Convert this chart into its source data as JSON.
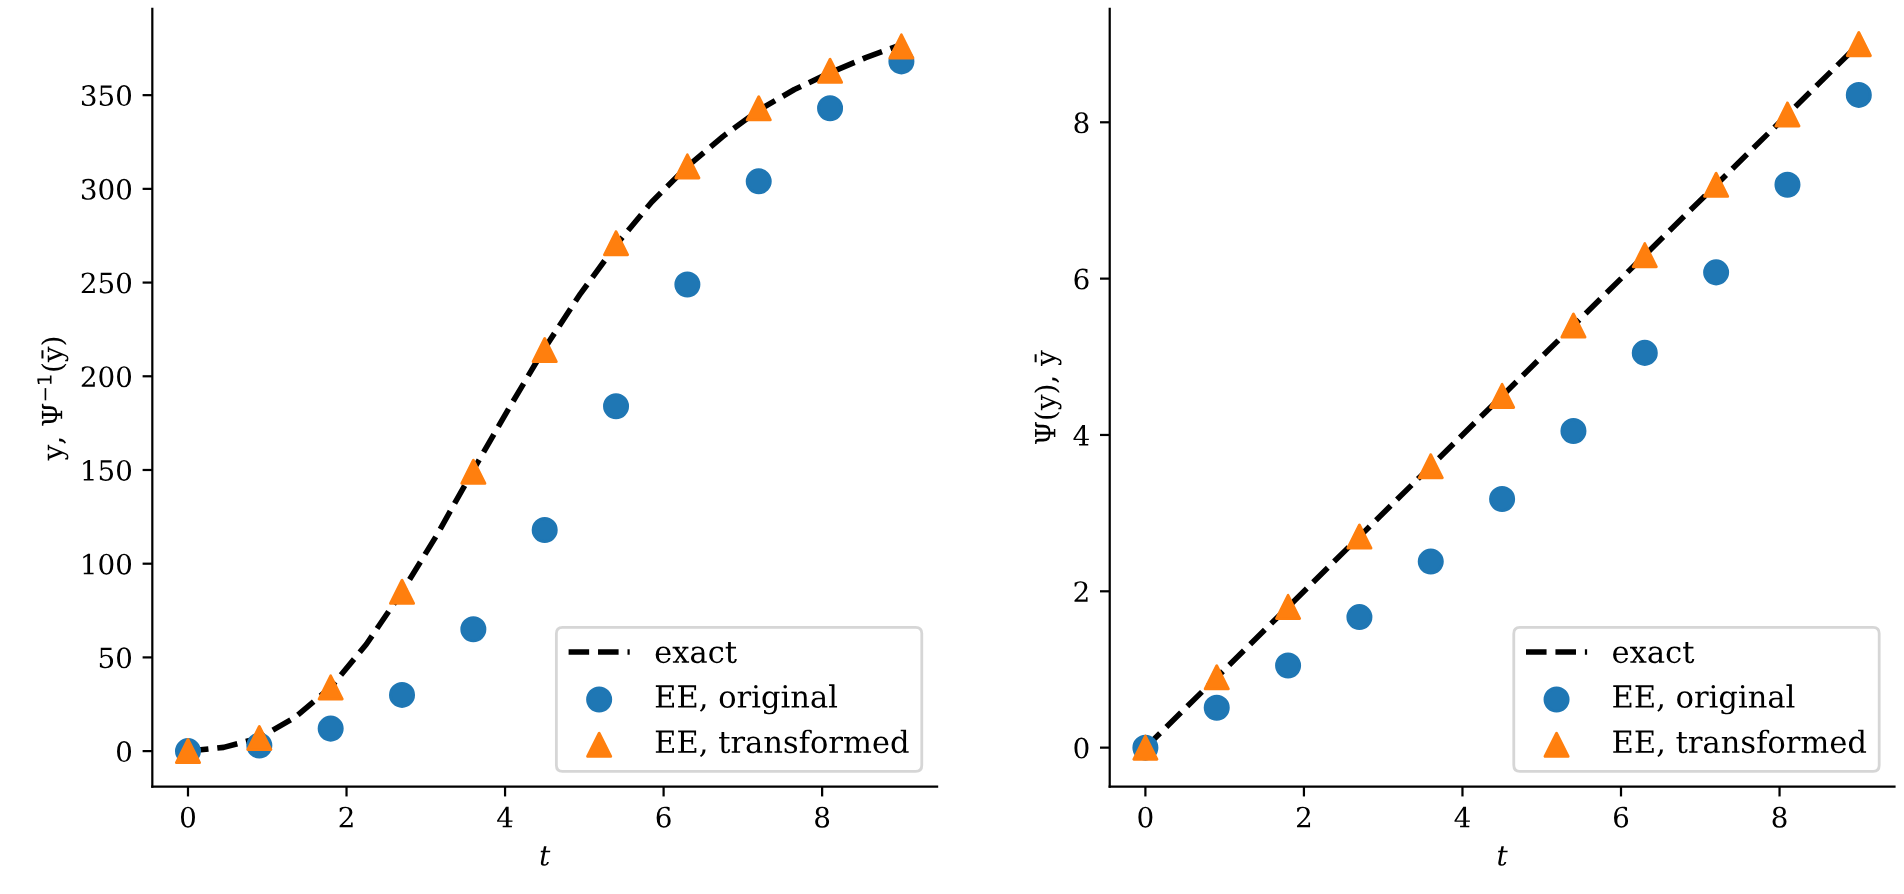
{
  "chart_data": [
    {
      "type": "scatter",
      "xlabel": "t",
      "ylabel": "y, Ψ$^{−1}$(ȳ)",
      "xlim": [
        -0.45,
        9.45
      ],
      "ylim": [
        -19,
        396
      ],
      "xticks": [
        0,
        2,
        4,
        6,
        8
      ],
      "yticks": [
        0,
        50,
        100,
        150,
        200,
        250,
        300,
        350
      ],
      "legend": "bottom right",
      "grid": false,
      "series": [
        {
          "name": "exact",
          "type": "line",
          "line_style": "dashed",
          "marker": "none",
          "color": "#000000",
          "x": [
            0,
            0.45,
            0.9,
            1.35,
            1.8,
            2.25,
            2.7,
            3.15,
            3.6,
            4.05,
            4.5,
            4.95,
            5.4,
            5.85,
            6.3,
            6.75,
            7.2,
            7.65,
            8.1,
            8.55,
            9.0
          ],
          "values": [
            0,
            2,
            7,
            18,
            34,
            57,
            85,
            116,
            150,
            183,
            215,
            244,
            270,
            293,
            312,
            328,
            342,
            353,
            362,
            370,
            377
          ]
        },
        {
          "name": "EE, original",
          "type": "scatter",
          "marker": "circle",
          "color": "#1f77b4",
          "x": [
            0,
            0.9,
            1.8,
            2.7,
            3.6,
            4.5,
            5.4,
            6.3,
            7.2,
            8.1,
            9.0
          ],
          "values": [
            0,
            3,
            12,
            30,
            65,
            118,
            184,
            249,
            304,
            343,
            368
          ]
        },
        {
          "name": "EE, transformed",
          "type": "scatter",
          "marker": "triangle",
          "color": "#ff7f0e",
          "x": [
            0,
            0.9,
            1.8,
            2.7,
            3.6,
            4.5,
            5.4,
            6.3,
            7.2,
            8.1,
            9.0
          ],
          "values": [
            0,
            7,
            34,
            85,
            149,
            214,
            271,
            312,
            343,
            363,
            376
          ]
        }
      ]
    },
    {
      "type": "scatter",
      "xlabel": "t",
      "ylabel": "Ψ(y), ȳ",
      "xlim": [
        -0.45,
        9.45
      ],
      "ylim": [
        -0.5,
        9.45
      ],
      "xticks": [
        0,
        2,
        4,
        6,
        8
      ],
      "yticks": [
        0,
        2,
        4,
        6,
        8
      ],
      "legend": "bottom right",
      "grid": false,
      "series": [
        {
          "name": "exact",
          "type": "line",
          "line_style": "dashed",
          "marker": "none",
          "color": "#000000",
          "x": [
            0,
            9.0
          ],
          "values": [
            0,
            9.0
          ]
        },
        {
          "name": "EE, original",
          "type": "scatter",
          "marker": "circle",
          "color": "#1f77b4",
          "x": [
            0,
            0.9,
            1.8,
            2.7,
            3.6,
            4.5,
            5.4,
            6.3,
            7.2,
            8.1,
            9.0
          ],
          "values": [
            0,
            0.51,
            1.05,
            1.67,
            2.38,
            3.18,
            4.05,
            5.05,
            6.08,
            7.2,
            8.35
          ]
        },
        {
          "name": "EE, transformed",
          "type": "scatter",
          "marker": "triangle",
          "color": "#ff7f0e",
          "x": [
            0,
            0.9,
            1.8,
            2.7,
            3.6,
            4.5,
            5.4,
            6.3,
            7.2,
            8.1,
            9.0
          ],
          "values": [
            0,
            0.9,
            1.8,
            2.7,
            3.6,
            4.5,
            5.4,
            6.3,
            7.2,
            8.1,
            9.0
          ]
        }
      ]
    }
  ]
}
